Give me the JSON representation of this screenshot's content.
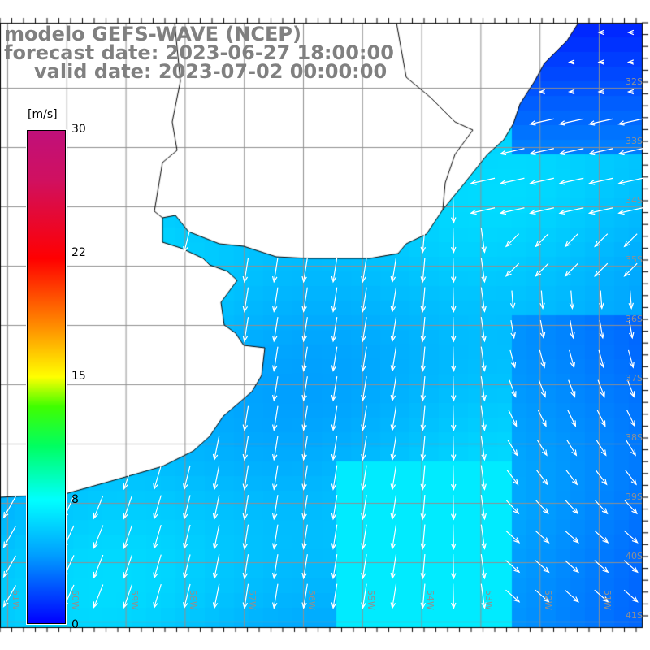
{
  "title": {
    "model": "modelo GEFS-WAVE (NCEP)",
    "forecast": "forecast date: 2023-06-27 18:00:00",
    "valid": "valid date: 2023-07-02 00:00:00"
  },
  "colorbar": {
    "unit": "[m/s]",
    "ticks": [
      "30",
      "22",
      "15",
      "8",
      "0"
    ],
    "tick_values": [
      30,
      22,
      15,
      8,
      0
    ],
    "colors": [
      "#0000ff",
      "#00a0ff",
      "#00ffff",
      "#00ff60",
      "#ffff00",
      "#ff9000",
      "#ff0000",
      "#c0107a"
    ]
  },
  "axes": {
    "lat_labels": [
      "32S",
      "33S",
      "34S",
      "35S",
      "36S",
      "37S",
      "38S",
      "39S",
      "40S",
      "41S"
    ],
    "lon_labels": [
      "61W",
      "60W",
      "59W",
      "58W",
      "57W",
      "56W",
      "55W",
      "54W",
      "53W",
      "52W",
      "51W"
    ]
  }
}
